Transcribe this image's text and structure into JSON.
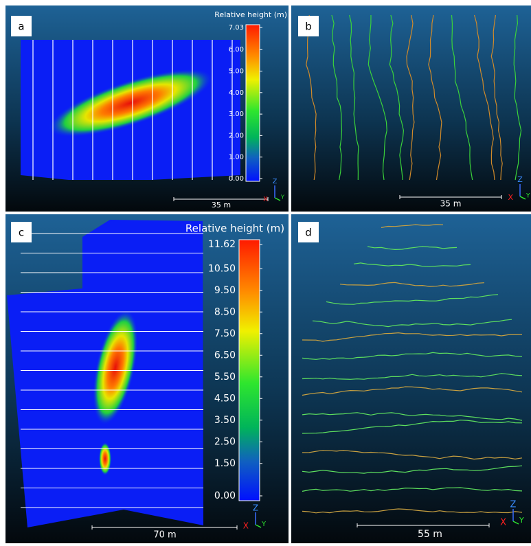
{
  "panels": [
    {
      "label": "a",
      "colorbar": {
        "title": "Relative height (m)",
        "ticks": [
          {
            "value": 7.03,
            "label": "7.03"
          },
          {
            "value": 6,
            "label": "6.00"
          },
          {
            "value": 5,
            "label": "5.00"
          },
          {
            "value": 4,
            "label": "4.00"
          },
          {
            "value": 3,
            "label": "3.00"
          },
          {
            "value": 2,
            "label": "2.00"
          },
          {
            "value": 1,
            "label": "1.00"
          },
          {
            "value": 0,
            "label": "0.00"
          }
        ]
      },
      "scale_bar": "35 m",
      "axes": {
        "z": "Z",
        "x": "X",
        "y": "Y"
      }
    },
    {
      "label": "b",
      "scale_bar": "35 m",
      "axes": {
        "z": "Z",
        "x": "X",
        "y": "Y"
      }
    },
    {
      "label": "c",
      "colorbar": {
        "title": "Relative height (m)",
        "ticks": [
          {
            "value": 11.62,
            "label": "11.62"
          },
          {
            "value": 10.5,
            "label": "10.50"
          },
          {
            "value": 9.5,
            "label": "9.50"
          },
          {
            "value": 8.5,
            "label": "8.50"
          },
          {
            "value": 7.5,
            "label": "7.50"
          },
          {
            "value": 6.5,
            "label": "6.50"
          },
          {
            "value": 5.5,
            "label": "5.50"
          },
          {
            "value": 4.5,
            "label": "4.50"
          },
          {
            "value": 3.5,
            "label": "3.50"
          },
          {
            "value": 2.5,
            "label": "2.50"
          },
          {
            "value": 1.5,
            "label": "1.50"
          },
          {
            "value": 0,
            "label": "0.00"
          }
        ]
      },
      "scale_bar": "70 m",
      "axes": {
        "z": "Z",
        "x": "X",
        "y": "Y"
      }
    },
    {
      "label": "d",
      "scale_bar": "55 m",
      "axes": {
        "z": "Z",
        "x": "X",
        "y": "Y"
      }
    }
  ]
}
